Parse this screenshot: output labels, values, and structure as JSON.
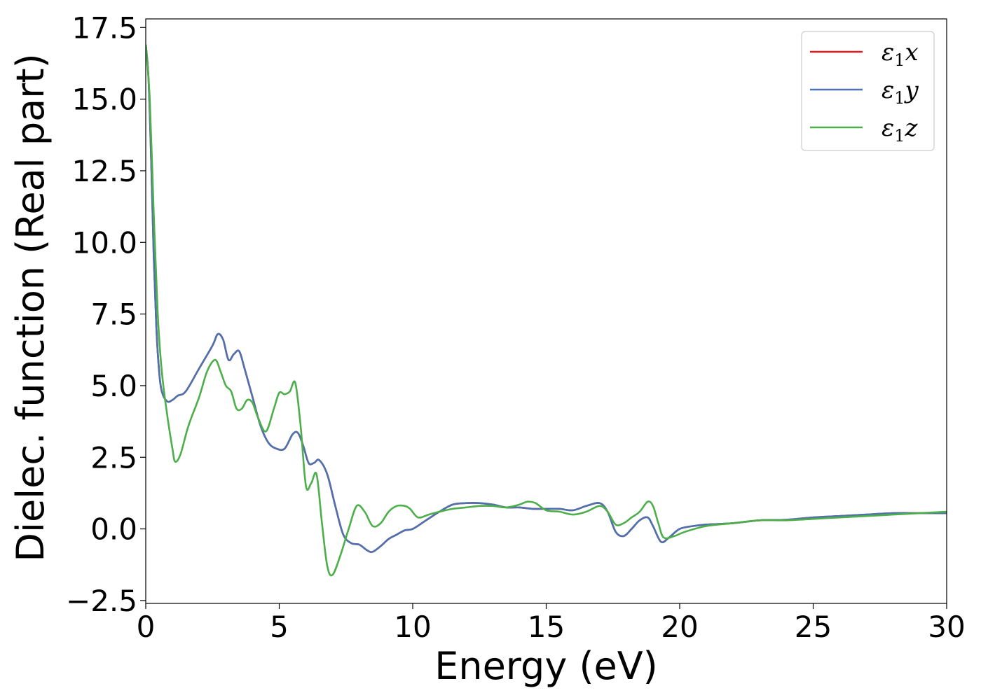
{
  "chart_data": {
    "type": "line",
    "title": "",
    "xlabel": "Energy (eV)",
    "ylabel": "Dielec. function (Real part)",
    "xlim": [
      0,
      30
    ],
    "ylim": [
      -2.6,
      17.8
    ],
    "xticks": [
      0,
      5,
      10,
      15,
      20,
      25,
      30
    ],
    "xtick_labels": [
      "0",
      "5",
      "10",
      "15",
      "20",
      "25",
      "30"
    ],
    "yticks": [
      -2.5,
      0.0,
      2.5,
      5.0,
      7.5,
      10.0,
      12.5,
      15.0,
      17.5
    ],
    "ytick_labels": [
      "−2.5",
      "0.0",
      "2.5",
      "5.0",
      "7.5",
      "10.0",
      "12.5",
      "15.0",
      "17.5"
    ],
    "grid": false,
    "legend_position": "top-right",
    "series": [
      {
        "name": "ε1x",
        "legend_base": "ε",
        "legend_sub": "1",
        "legend_var": "x",
        "color": "#e41a1c",
        "x": [
          0,
          0.1,
          0.2,
          0.3,
          0.4,
          0.5,
          0.6,
          0.8,
          1.0,
          1.2,
          1.5,
          2.0,
          2.5,
          2.7,
          2.9,
          3.1,
          3.3,
          3.5,
          3.7,
          4.0,
          4.3,
          4.6,
          4.9,
          5.2,
          5.5,
          5.7,
          5.9,
          6.1,
          6.3,
          6.5,
          6.8,
          7.1,
          7.4,
          7.7,
          8.0,
          8.3,
          8.5,
          8.8,
          9.1,
          9.4,
          9.7,
          10.0,
          10.5,
          11.0,
          11.5,
          12.0,
          12.5,
          13.0,
          13.5,
          14.0,
          14.5,
          15.0,
          15.5,
          16.0,
          16.5,
          17.0,
          17.3,
          17.6,
          17.9,
          18.2,
          18.5,
          18.8,
          19.0,
          19.3,
          19.6,
          20.0,
          20.5,
          21.0,
          22.0,
          23.0,
          24.0,
          25.0,
          26.0,
          27.0,
          28.0,
          29.0,
          30.0
        ],
        "y": [
          16.9,
          15.8,
          13.0,
          9.5,
          7.0,
          5.5,
          4.8,
          4.45,
          4.5,
          4.65,
          4.8,
          5.6,
          6.4,
          6.8,
          6.6,
          5.9,
          6.1,
          6.2,
          5.6,
          4.6,
          3.6,
          3.0,
          2.8,
          2.8,
          3.3,
          3.35,
          2.9,
          2.3,
          2.3,
          2.4,
          1.9,
          0.8,
          -0.2,
          -0.5,
          -0.55,
          -0.75,
          -0.8,
          -0.6,
          -0.35,
          -0.2,
          -0.05,
          0.0,
          0.3,
          0.6,
          0.85,
          0.9,
          0.9,
          0.85,
          0.75,
          0.75,
          0.7,
          0.7,
          0.7,
          0.65,
          0.8,
          0.9,
          0.6,
          -0.1,
          -0.25,
          0.0,
          0.3,
          0.4,
          0.1,
          -0.45,
          -0.3,
          0.0,
          0.1,
          0.15,
          0.2,
          0.3,
          0.32,
          0.4,
          0.45,
          0.5,
          0.55,
          0.55,
          0.55
        ]
      },
      {
        "name": "ε1y",
        "legend_base": "ε",
        "legend_sub": "1",
        "legend_var": "y",
        "color": "#4c72b0",
        "x": [
          0,
          0.1,
          0.2,
          0.3,
          0.4,
          0.5,
          0.6,
          0.8,
          1.0,
          1.2,
          1.5,
          2.0,
          2.5,
          2.7,
          2.9,
          3.1,
          3.3,
          3.5,
          3.7,
          4.0,
          4.3,
          4.6,
          4.9,
          5.2,
          5.5,
          5.7,
          5.9,
          6.1,
          6.3,
          6.5,
          6.8,
          7.1,
          7.4,
          7.7,
          8.0,
          8.3,
          8.5,
          8.8,
          9.1,
          9.4,
          9.7,
          10.0,
          10.5,
          11.0,
          11.5,
          12.0,
          12.5,
          13.0,
          13.5,
          14.0,
          14.5,
          15.0,
          15.5,
          16.0,
          16.5,
          17.0,
          17.3,
          17.6,
          17.9,
          18.2,
          18.5,
          18.8,
          19.0,
          19.3,
          19.6,
          20.0,
          20.5,
          21.0,
          22.0,
          23.0,
          24.0,
          25.0,
          26.0,
          27.0,
          28.0,
          29.0,
          30.0
        ],
        "y": [
          16.9,
          15.8,
          13.0,
          9.5,
          7.0,
          5.5,
          4.8,
          4.45,
          4.5,
          4.65,
          4.8,
          5.6,
          6.4,
          6.8,
          6.6,
          5.9,
          6.1,
          6.2,
          5.6,
          4.6,
          3.6,
          3.0,
          2.8,
          2.8,
          3.3,
          3.35,
          2.9,
          2.3,
          2.3,
          2.4,
          1.9,
          0.8,
          -0.2,
          -0.5,
          -0.55,
          -0.75,
          -0.8,
          -0.6,
          -0.35,
          -0.2,
          -0.05,
          0.0,
          0.3,
          0.6,
          0.85,
          0.9,
          0.9,
          0.85,
          0.75,
          0.75,
          0.7,
          0.7,
          0.7,
          0.65,
          0.8,
          0.9,
          0.6,
          -0.1,
          -0.25,
          0.0,
          0.3,
          0.4,
          0.1,
          -0.45,
          -0.3,
          0.0,
          0.1,
          0.15,
          0.2,
          0.3,
          0.32,
          0.4,
          0.45,
          0.5,
          0.55,
          0.55,
          0.55
        ]
      },
      {
        "name": "ε1z",
        "legend_base": "ε",
        "legend_sub": "1",
        "legend_var": "z",
        "color": "#4daf4a",
        "x": [
          0,
          0.15,
          0.3,
          0.45,
          0.6,
          0.8,
          1.0,
          1.1,
          1.3,
          1.6,
          2.0,
          2.3,
          2.6,
          2.8,
          3.0,
          3.2,
          3.4,
          3.6,
          3.8,
          4.0,
          4.2,
          4.5,
          4.8,
          5.0,
          5.2,
          5.4,
          5.6,
          5.8,
          6.0,
          6.2,
          6.4,
          6.6,
          6.8,
          7.0,
          7.3,
          7.6,
          7.9,
          8.2,
          8.5,
          8.8,
          9.1,
          9.4,
          9.7,
          9.9,
          10.2,
          10.6,
          11.0,
          11.5,
          12.0,
          12.5,
          13.0,
          13.5,
          14.0,
          14.3,
          14.6,
          15.0,
          15.5,
          16.0,
          16.5,
          17.0,
          17.3,
          17.6,
          17.9,
          18.2,
          18.5,
          18.8,
          19.0,
          19.2,
          19.4,
          19.8,
          20.2,
          21.0,
          22.0,
          23.0,
          24.0,
          25.0,
          26.0,
          27.0,
          28.0,
          29.0,
          30.0
        ],
        "y": [
          16.9,
          15.0,
          11.0,
          7.5,
          5.5,
          4.0,
          2.8,
          2.35,
          2.6,
          3.6,
          4.6,
          5.5,
          5.9,
          5.5,
          5.0,
          4.8,
          4.2,
          4.2,
          4.5,
          4.4,
          3.9,
          3.4,
          4.2,
          4.75,
          4.7,
          4.8,
          5.1,
          3.6,
          1.5,
          1.6,
          1.9,
          0.2,
          -1.3,
          -1.6,
          -0.9,
          0.0,
          0.8,
          0.6,
          0.1,
          0.2,
          0.6,
          0.8,
          0.8,
          0.7,
          0.4,
          0.5,
          0.6,
          0.7,
          0.75,
          0.8,
          0.8,
          0.75,
          0.85,
          0.95,
          0.9,
          0.65,
          0.6,
          0.5,
          0.6,
          0.8,
          0.6,
          0.15,
          0.2,
          0.4,
          0.6,
          0.95,
          0.8,
          0.2,
          -0.3,
          -0.25,
          -0.1,
          0.1,
          0.2,
          0.3,
          0.3,
          0.35,
          0.4,
          0.45,
          0.5,
          0.55,
          0.6
        ]
      }
    ]
  }
}
